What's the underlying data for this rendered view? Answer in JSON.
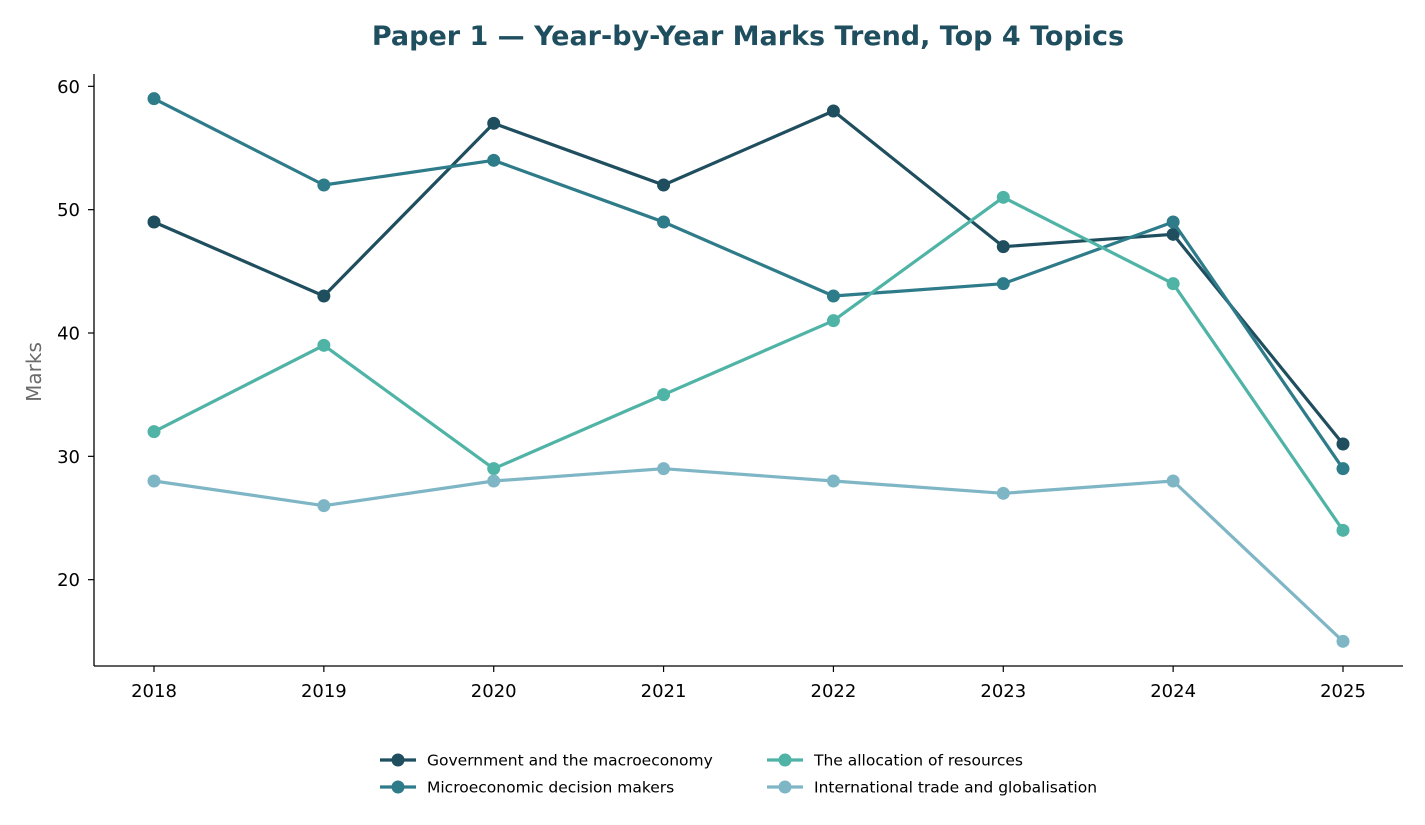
{
  "chart_data": {
    "type": "line",
    "title": "Paper 1 — Year-by-Year Marks Trend, Top 4 Topics",
    "title_color": "#1f4e5f",
    "xlabel": "",
    "ylabel": "Marks",
    "x": [
      "2018",
      "2019",
      "2020",
      "2021",
      "2022",
      "2023",
      "2024",
      "2025"
    ],
    "ylim": [
      13,
      61
    ],
    "yticks": [
      20,
      30,
      40,
      50,
      60
    ],
    "grid": false,
    "legend_position": "bottom-center",
    "series": [
      {
        "name": "Government and the macroeconomy",
        "color": "#1f4e5f",
        "values": [
          49,
          43,
          57,
          52,
          58,
          47,
          48,
          31
        ]
      },
      {
        "name": "Microeconomic decision makers",
        "color": "#2e7b8a",
        "values": [
          59,
          52,
          54,
          49,
          43,
          44,
          49,
          29
        ]
      },
      {
        "name": "The allocation of resources",
        "color": "#4fb3a6",
        "values": [
          32,
          39,
          29,
          35,
          41,
          51,
          44,
          24
        ]
      },
      {
        "name": "International trade and globalisation",
        "color": "#7fb6c6",
        "values": [
          28,
          26,
          28,
          29,
          28,
          27,
          28,
          15
        ]
      }
    ]
  }
}
